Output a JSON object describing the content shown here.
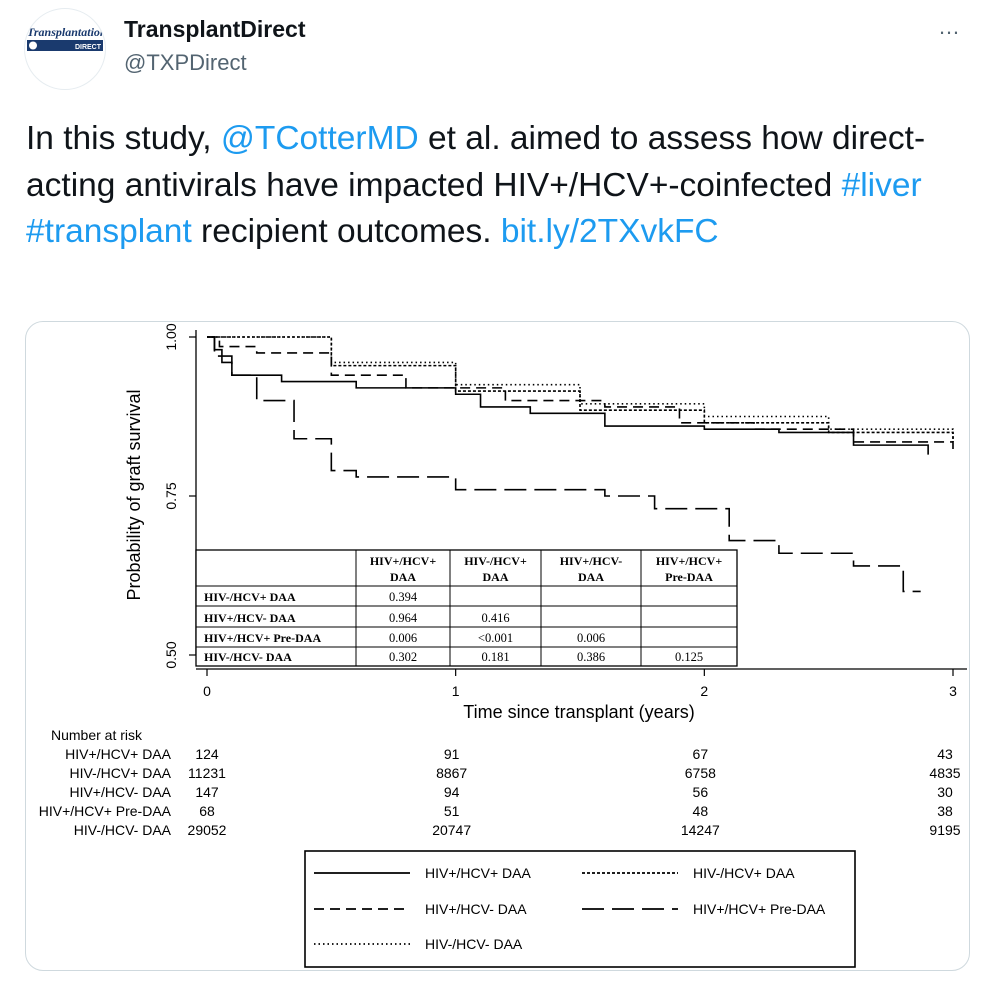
{
  "tweet": {
    "display_name": "TransplantDirect",
    "handle": "@TXPDirect",
    "more_icon": "…",
    "avatar_logo_text": [
      "Transplantation",
      "DIRECT"
    ],
    "text_parts": [
      {
        "text": "In this study, ",
        "link": false
      },
      {
        "text": "@TCotterMD",
        "link": true
      },
      {
        "text": " et al. aimed to assess how direct-acting antivirals have impacted HIV+/HCV+-coinfected ",
        "link": false
      },
      {
        "text": "#liver",
        "link": true
      },
      {
        "text": " ",
        "link": false
      },
      {
        "text": "#transplant",
        "link": true
      },
      {
        "text": " recipient outcomes. ",
        "link": false
      },
      {
        "text": "bit.ly/2TXvkFC",
        "link": true
      }
    ]
  },
  "chart_data": {
    "type": "line",
    "title": "",
    "xlabel": "Time since transplant (years)",
    "ylabel": "Probability of graft survival",
    "xlim": [
      0,
      3
    ],
    "ylim": [
      0.5,
      1.0
    ],
    "x_ticks": [
      0,
      1,
      2,
      3
    ],
    "x_tick_labels": [
      "0",
      "1",
      "2",
      "3"
    ],
    "y_ticks": [
      0.5,
      0.75,
      1.0
    ],
    "y_tick_labels": [
      "0.50",
      "0.75",
      "1.00"
    ],
    "series": [
      {
        "name": "HIV+/HCV+ DAA",
        "dash": "solid",
        "x": [
          0,
          0.03,
          0.06,
          0.1,
          0.3,
          0.6,
          1.0,
          1.1,
          1.3,
          1.6,
          2.0,
          2.3,
          2.6,
          2.9
        ],
        "y": [
          1.0,
          0.98,
          0.96,
          0.94,
          0.93,
          0.92,
          0.91,
          0.89,
          0.88,
          0.86,
          0.855,
          0.85,
          0.83,
          0.815
        ]
      },
      {
        "name": "HIV-/HCV+ DAA",
        "dash": "dotted-dense",
        "x": [
          0,
          0.5,
          1.0,
          1.5,
          2.0,
          2.5,
          3.0
        ],
        "y": [
          1.0,
          0.955,
          0.915,
          0.885,
          0.865,
          0.85,
          0.835
        ]
      },
      {
        "name": "HIV+/HCV- DAA",
        "dash": "dashed",
        "x": [
          0,
          0.05,
          0.2,
          0.5,
          0.8,
          1.2,
          1.6,
          1.9,
          2.2,
          2.6,
          3.0
        ],
        "y": [
          1.0,
          0.985,
          0.975,
          0.94,
          0.92,
          0.9,
          0.89,
          0.865,
          0.855,
          0.835,
          0.815
        ]
      },
      {
        "name": "HIV+/HCV+ Pre-DAA",
        "dash": "longdash",
        "x": [
          0,
          0.03,
          0.1,
          0.2,
          0.35,
          0.5,
          0.6,
          1.0,
          1.6,
          1.8,
          2.1,
          2.3,
          2.6,
          2.8,
          2.87
        ],
        "y": [
          1.0,
          0.97,
          0.94,
          0.9,
          0.84,
          0.79,
          0.78,
          0.76,
          0.75,
          0.73,
          0.68,
          0.66,
          0.64,
          0.6,
          0.6
        ]
      },
      {
        "name": "HIV-/HCV- DAA",
        "dash": "dotted-sparse",
        "x": [
          0,
          0.5,
          1.0,
          1.5,
          2.0,
          2.5,
          3.0
        ],
        "y": [
          1.0,
          0.96,
          0.925,
          0.895,
          0.875,
          0.855,
          0.84
        ]
      }
    ],
    "inset_table": {
      "headers": [
        "",
        "HIV+/HCV+ DAA",
        "HIV-/HCV+ DAA",
        "HIV+/HCV- DAA",
        "HIV+/HCV+ Pre-DAA"
      ],
      "header_lines": [
        [
          "",
          ""
        ],
        [
          "HIV+/HCV+",
          "DAA"
        ],
        [
          "HIV-/HCV+",
          "DAA"
        ],
        [
          "HIV+/HCV-",
          "DAA"
        ],
        [
          "HIV+/HCV+",
          "Pre-DAA"
        ]
      ],
      "rows": [
        [
          "HIV-/HCV+ DAA",
          "0.394",
          "",
          "",
          ""
        ],
        [
          "HIV+/HCV- DAA",
          "0.964",
          "0.416",
          "",
          ""
        ],
        [
          "HIV+/HCV+ Pre-DAA",
          "0.006",
          "<0.001",
          "0.006",
          ""
        ],
        [
          "HIV-/HCV- DAA",
          "0.302",
          "0.181",
          "0.386",
          "0.125"
        ]
      ]
    },
    "risk_table": {
      "title": "Number at risk",
      "rows": [
        {
          "label": "HIV+/HCV+ DAA",
          "values": [
            "124",
            "91",
            "67",
            "43"
          ]
        },
        {
          "label": "HIV-/HCV+ DAA",
          "values": [
            "11231",
            "8867",
            "6758",
            "4835"
          ]
        },
        {
          "label": "HIV+/HCV- DAA",
          "values": [
            "147",
            "94",
            "56",
            "30"
          ]
        },
        {
          "label": "HIV+/HCV+ Pre-DAA",
          "values": [
            "68",
            "51",
            "48",
            "38"
          ]
        },
        {
          "label": "HIV-/HCV- DAA",
          "values": [
            "29052",
            "20747",
            "14247",
            "9195"
          ]
        }
      ]
    },
    "legend": {
      "placement": "bottom",
      "entries": [
        {
          "name": "HIV+/HCV+ DAA",
          "dash": "solid"
        },
        {
          "name": "HIV-/HCV+ DAA",
          "dash": "dotted-dense"
        },
        {
          "name": "HIV+/HCV- DAA",
          "dash": "dashed"
        },
        {
          "name": "HIV+/HCV+ Pre-DAA",
          "dash": "longdash"
        },
        {
          "name": "HIV-/HCV- DAA",
          "dash": "dotted-sparse"
        }
      ]
    },
    "grid": false
  }
}
